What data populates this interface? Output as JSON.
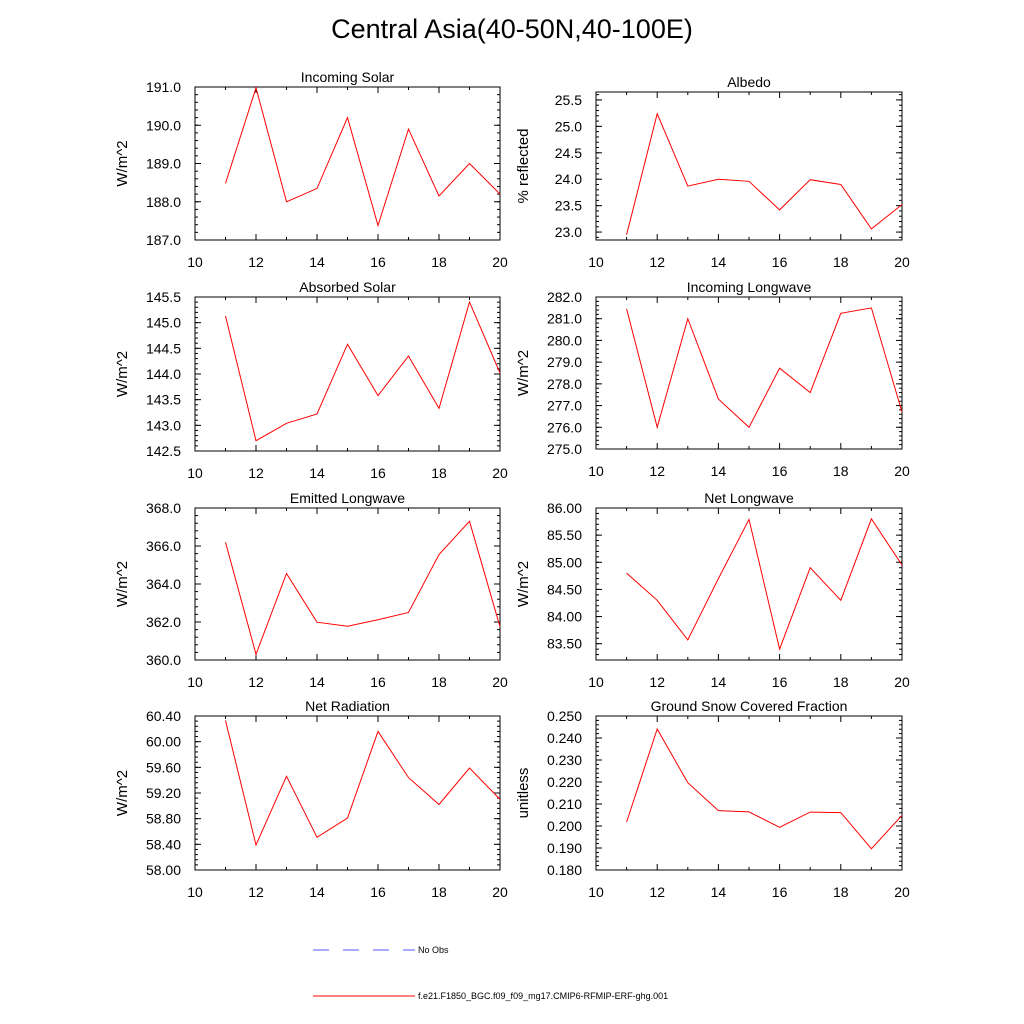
{
  "figure": {
    "title": "Central Asia(40-50N,40-100E)",
    "colors": {
      "model": "#ff0000",
      "obs": "#5555ff",
      "axis": "#000000"
    }
  },
  "legend": {
    "obs_label": "No Obs",
    "model_label": "f.e21.F1850_BGC.f09_f09_mg17.CMIP6-RFMIP-ERF-ghg.001"
  },
  "chart_data": [
    {
      "type": "line",
      "title": "Incoming Solar",
      "ylabel": "W/m^2",
      "xlabel": "",
      "xlim": [
        10,
        20
      ],
      "ylim": [
        187.0,
        191.0
      ],
      "xticks": [
        10,
        12,
        14,
        16,
        18,
        20
      ],
      "yticks": [
        "187.0",
        "188.0",
        "189.0",
        "190.0",
        "191.0"
      ],
      "series": [
        {
          "name": "f.e21.F1850_BGC.f09_f09_mg17.CMIP6-RFMIP-ERF-ghg.001",
          "x": [
            11,
            12,
            13,
            14,
            15,
            16,
            17,
            18,
            19,
            20
          ],
          "values": [
            188.48,
            190.98,
            188.0,
            188.35,
            190.2,
            187.38,
            189.9,
            188.15,
            189.0,
            188.2
          ]
        }
      ]
    },
    {
      "type": "line",
      "title": "Albedo",
      "ylabel": "% reflected",
      "xlabel": "",
      "xlim": [
        10,
        20
      ],
      "ylim": [
        22.85,
        25.65
      ],
      "xticks": [
        10,
        12,
        14,
        16,
        18,
        20
      ],
      "yticks": [
        "23.0",
        "23.5",
        "24.0",
        "24.5",
        "25.0",
        "25.5"
      ],
      "series": [
        {
          "name": "f.e21.F1850_BGC.f09_f09_mg17.CMIP6-RFMIP-ERF-ghg.001",
          "x": [
            11,
            12,
            13,
            14,
            15,
            16,
            17,
            18,
            19,
            20
          ],
          "values": [
            22.95,
            25.24,
            23.87,
            24.0,
            23.96,
            23.42,
            23.99,
            23.9,
            23.06,
            23.52
          ]
        }
      ]
    },
    {
      "type": "line",
      "title": "Absorbed Solar",
      "ylabel": "W/m^2",
      "xlabel": "",
      "xlim": [
        10,
        20
      ],
      "ylim": [
        142.5,
        145.5
      ],
      "xticks": [
        10,
        12,
        14,
        16,
        18,
        20
      ],
      "yticks": [
        "142.5",
        "143.0",
        "143.5",
        "144.0",
        "144.5",
        "145.0",
        "145.5"
      ],
      "series": [
        {
          "name": "f.e21.F1850_BGC.f09_f09_mg17.CMIP6-RFMIP-ERF-ghg.001",
          "x": [
            11,
            12,
            13,
            14,
            15,
            16,
            17,
            18,
            19,
            20
          ],
          "values": [
            145.13,
            142.7,
            143.04,
            143.22,
            144.58,
            143.58,
            144.35,
            143.33,
            145.4,
            144.02
          ]
        }
      ]
    },
    {
      "type": "line",
      "title": "Incoming Longwave",
      "ylabel": "W/m^2",
      "xlabel": "",
      "xlim": [
        10,
        20
      ],
      "ylim": [
        275.0,
        282.0
      ],
      "xticks": [
        10,
        12,
        14,
        16,
        18,
        20
      ],
      "yticks": [
        "275.0",
        "276.0",
        "277.0",
        "278.0",
        "279.0",
        "280.0",
        "281.0",
        "282.0"
      ],
      "series": [
        {
          "name": "f.e21.F1850_BGC.f09_f09_mg17.CMIP6-RFMIP-ERF-ghg.001",
          "x": [
            11,
            12,
            13,
            14,
            15,
            16,
            17,
            18,
            19,
            20
          ],
          "values": [
            281.45,
            276.0,
            281.0,
            277.3,
            276.0,
            278.72,
            277.6,
            281.25,
            281.5,
            276.7
          ]
        }
      ]
    },
    {
      "type": "line",
      "title": "Emitted Longwave",
      "ylabel": "W/m^2",
      "xlabel": "",
      "xlim": [
        10,
        20
      ],
      "ylim": [
        360.0,
        368.0
      ],
      "xticks": [
        10,
        12,
        14,
        16,
        18,
        20
      ],
      "yticks": [
        "360.0",
        "362.0",
        "364.0",
        "366.0",
        "368.0"
      ],
      "series": [
        {
          "name": "f.e21.F1850_BGC.f09_f09_mg17.CMIP6-RFMIP-ERF-ghg.001",
          "x": [
            11,
            12,
            13,
            14,
            15,
            16,
            17,
            18,
            19,
            20
          ],
          "values": [
            366.2,
            360.3,
            364.55,
            361.99,
            361.78,
            362.12,
            362.5,
            365.55,
            367.3,
            361.75
          ]
        }
      ]
    },
    {
      "type": "line",
      "title": "Net Longwave",
      "ylabel": "W/m^2",
      "xlabel": "",
      "xlim": [
        10,
        20
      ],
      "ylim": [
        83.2,
        86.0
      ],
      "xticks": [
        10,
        12,
        14,
        16,
        18,
        20
      ],
      "yticks": [
        "83.50",
        "84.00",
        "84.50",
        "85.00",
        "85.50",
        "86.00"
      ],
      "series": [
        {
          "name": "f.e21.F1850_BGC.f09_f09_mg17.CMIP6-RFMIP-ERF-ghg.001",
          "x": [
            11,
            12,
            13,
            14,
            15,
            16,
            17,
            18,
            19,
            20
          ],
          "values": [
            84.8,
            84.3,
            83.57,
            84.7,
            85.79,
            83.4,
            84.9,
            84.3,
            85.8,
            84.95
          ]
        }
      ]
    },
    {
      "type": "line",
      "title": "Net Radiation",
      "ylabel": "W/m^2",
      "xlabel": "",
      "xlim": [
        10,
        20
      ],
      "ylim": [
        58.0,
        60.4
      ],
      "xticks": [
        10,
        12,
        14,
        16,
        18,
        20
      ],
      "yticks": [
        "58.00",
        "58.40",
        "58.80",
        "59.20",
        "59.60",
        "60.00",
        "60.40"
      ],
      "series": [
        {
          "name": "f.e21.F1850_BGC.f09_f09_mg17.CMIP6-RFMIP-ERF-ghg.001",
          "x": [
            11,
            12,
            13,
            14,
            15,
            16,
            17,
            18,
            19,
            20
          ],
          "values": [
            60.33,
            58.39,
            59.46,
            58.51,
            58.81,
            60.16,
            59.44,
            59.02,
            59.59,
            59.1
          ]
        }
      ]
    },
    {
      "type": "line",
      "title": "Ground Snow Covered Fraction",
      "ylabel": "unitless",
      "xlabel": "",
      "xlim": [
        10,
        20
      ],
      "ylim": [
        0.18,
        0.25
      ],
      "xticks": [
        10,
        12,
        14,
        16,
        18,
        20
      ],
      "yticks": [
        "0.180",
        "0.190",
        "0.200",
        "0.210",
        "0.220",
        "0.230",
        "0.240",
        "0.250"
      ],
      "series": [
        {
          "name": "f.e21.F1850_BGC.f09_f09_mg17.CMIP6-RFMIP-ERF-ghg.001",
          "x": [
            11,
            12,
            13,
            14,
            15,
            16,
            17,
            18,
            19,
            20
          ],
          "values": [
            0.2018,
            0.2441,
            0.2197,
            0.207,
            0.2064,
            0.1994,
            0.2063,
            0.2061,
            0.1897,
            0.2048
          ]
        }
      ]
    }
  ]
}
